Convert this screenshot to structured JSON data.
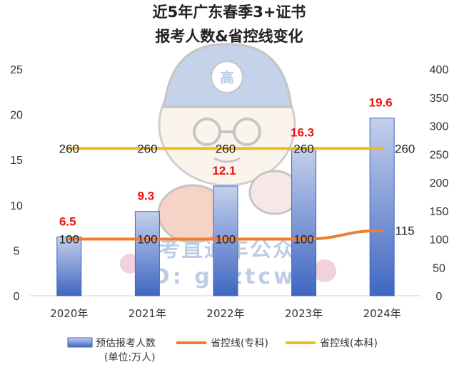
{
  "chart_data": {
    "type": "bar",
    "title_lines": [
      "近5年广东春季3+证书",
      "报考人数&省控线变化"
    ],
    "categories": [
      "2020年",
      "2021年",
      "2022年",
      "2023年",
      "2024年"
    ],
    "series": [
      {
        "name": "预估报考人数",
        "name_note": "(单位:万人)",
        "axis": "left",
        "kind": "bar",
        "values": [
          6.5,
          9.3,
          12.1,
          16.3,
          19.6
        ],
        "color": "#4472c4",
        "label_color": "#ee1111"
      },
      {
        "name": "省控线(专科)",
        "axis": "right",
        "kind": "line",
        "values": [
          100,
          100,
          100,
          100,
          115
        ],
        "color": "#ed7d31"
      },
      {
        "name": "省控线(本科)",
        "axis": "right",
        "kind": "line",
        "values": [
          260,
          260,
          260,
          260,
          260
        ],
        "color": "#f0bc1a"
      }
    ],
    "left_axis": {
      "ylim": [
        0,
        25
      ],
      "ticks": [
        "0",
        "5",
        "10",
        "15",
        "20",
        "25"
      ]
    },
    "right_axis": {
      "ylim": [
        0,
        400
      ],
      "ticks": [
        "0",
        "50",
        "100",
        "150",
        "200",
        "250",
        "300",
        "350",
        "400"
      ]
    },
    "grid": false,
    "legend_position": "bottom"
  },
  "watermark": {
    "badge_char": "高",
    "line1": "高考直通车公众号",
    "line2": "ID: gkztcwx"
  }
}
